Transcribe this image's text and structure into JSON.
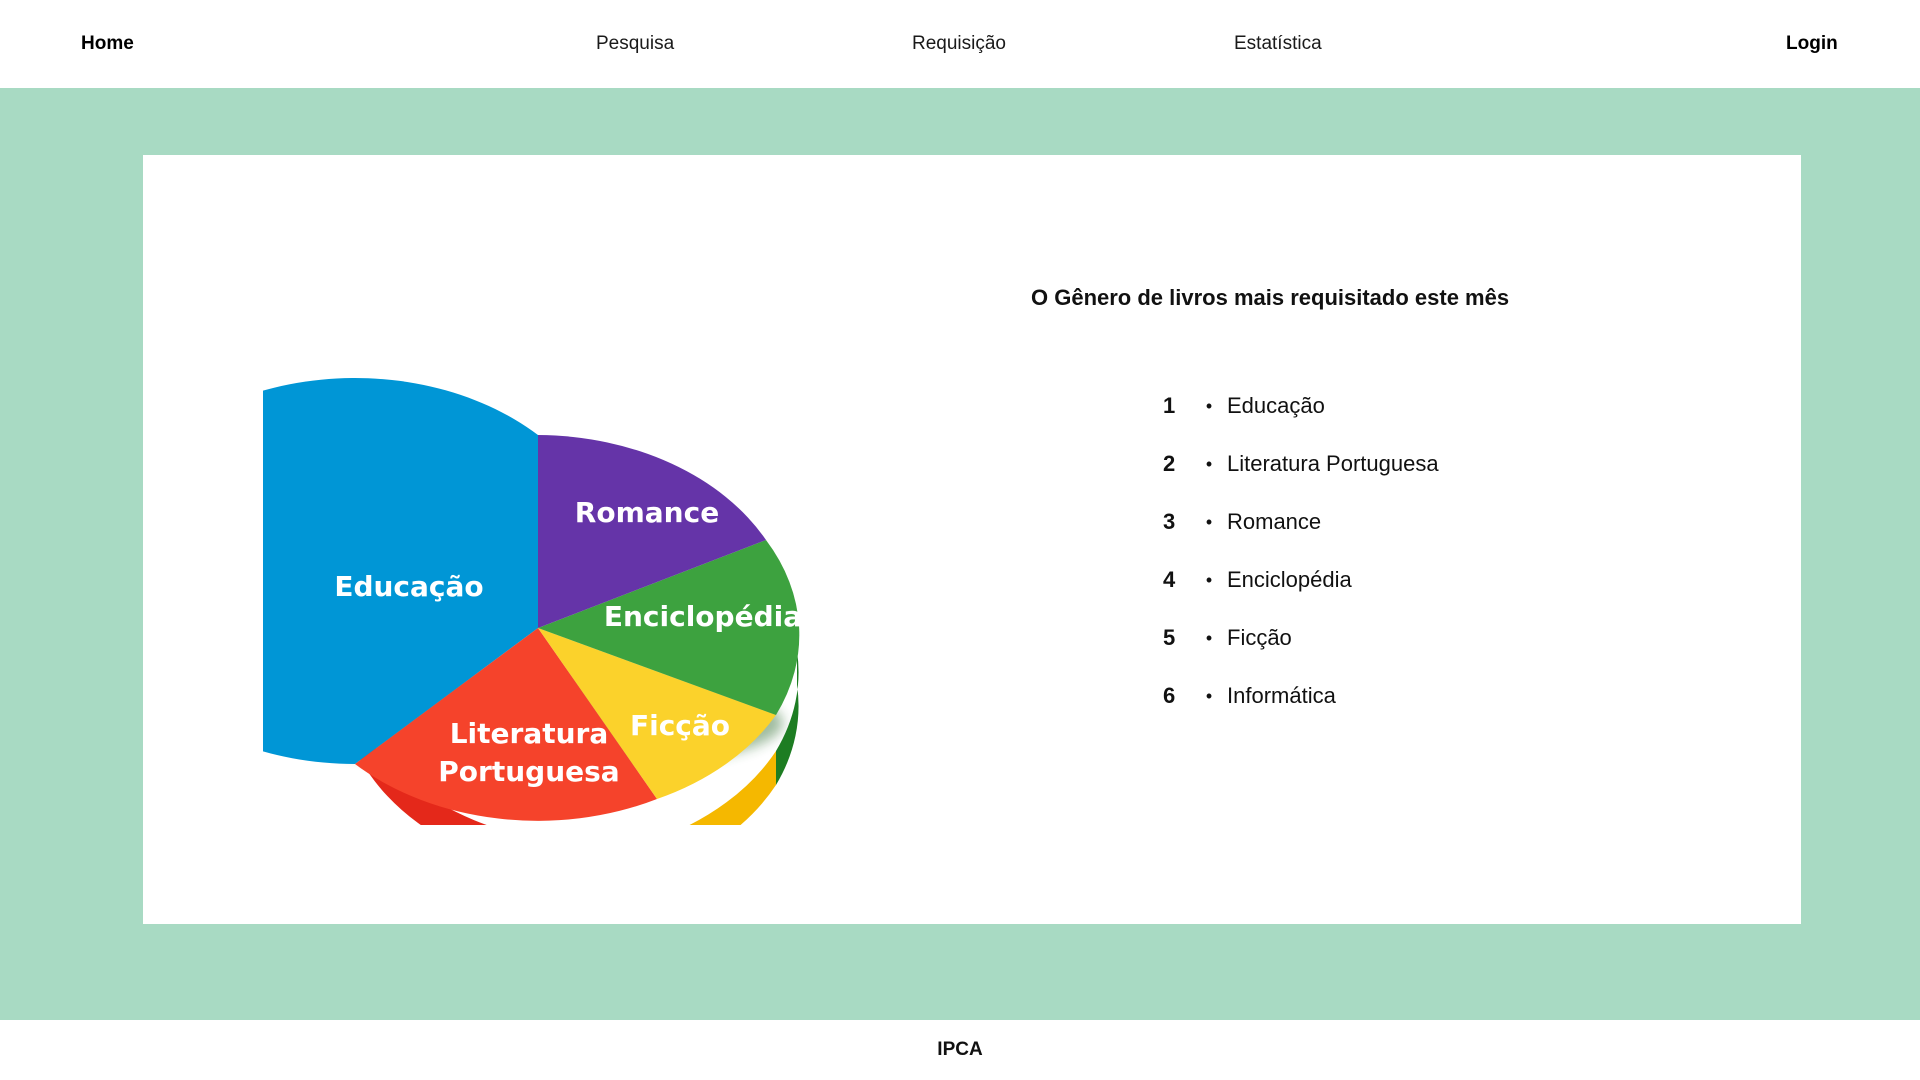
{
  "nav": {
    "home": "Home",
    "search": "Pesquisa",
    "request": "Requisição",
    "stats": "Estatística",
    "login": "Login"
  },
  "ranking": {
    "title": "O Gênero de livros mais requisitado este mês",
    "items": [
      {
        "rank": "1",
        "genre": "Educação"
      },
      {
        "rank": "2",
        "genre": "Literatura Portuguesa"
      },
      {
        "rank": "3",
        "genre": "Romance"
      },
      {
        "rank": "4",
        "genre": "Enciclopédia"
      },
      {
        "rank": "5",
        "genre": "Ficção"
      },
      {
        "rank": "6",
        "genre": "Informática"
      }
    ]
  },
  "pie_labels": {
    "romance": "Romance",
    "educacao": "Educação",
    "enciclopedia": "Enciclopédia",
    "ficcao": "Ficção",
    "literatura_line1": "Literatura",
    "literatura_line2": "Portuguesa"
  },
  "colors": {
    "background_band": "#a8dac3",
    "educacao": "#0096d6",
    "romance": "#6534a8",
    "enciclopedia": "#3da23f",
    "ficcao": "#fbd22b",
    "literatura": "#f5432b"
  },
  "footer": {
    "text": "IPCA"
  }
}
